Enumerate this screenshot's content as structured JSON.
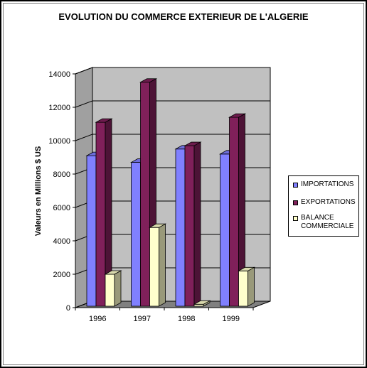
{
  "chart_data": {
    "type": "bar",
    "title": "EVOLUTION DU COMMERCE EXTERIEUR DE L'ALGERIE",
    "xlabel": "",
    "ylabel": "Valeurs en Millions $ US",
    "categories": [
      "1996",
      "1997",
      "1998",
      "1999"
    ],
    "ylim": [
      0,
      14000
    ],
    "yticks": [
      "0",
      "2000",
      "4000",
      "6000",
      "8000",
      "10000",
      "12000",
      "14000"
    ],
    "grid": true,
    "three_d": true,
    "legend_position": "right",
    "series": [
      {
        "name": "IMPORTATIONS",
        "color": "#8080ff",
        "values": [
          9100,
          8700,
          9500,
          9200
        ]
      },
      {
        "name": "EXPORTATIONS",
        "color": "#80205a",
        "values": [
          11100,
          13500,
          9700,
          11400
        ]
      },
      {
        "name": "BALANCE COMMERCIALE",
        "color": "#ffffcc",
        "values": [
          2000,
          4800,
          200,
          2200
        ]
      }
    ],
    "plot_background": "#c0c0c0"
  }
}
